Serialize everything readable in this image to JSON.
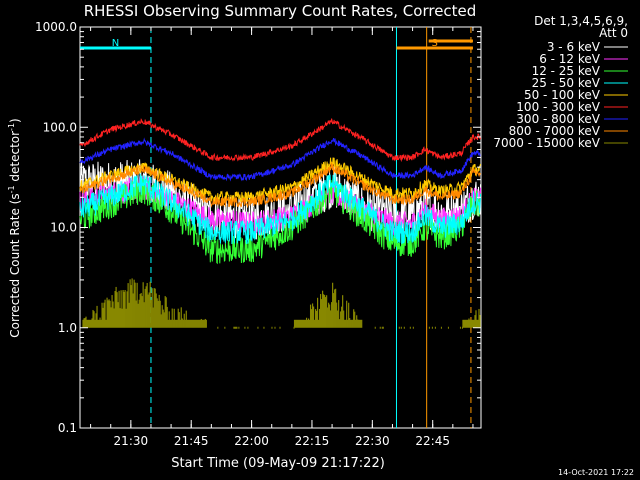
{
  "chart_data": {
    "type": "line",
    "title": "RHESSI Observing Summary Count Rates, Corrected",
    "xlabel": "Start Time (09-May-09 21:17:22)",
    "ylabel_main": "Corrected Count Rate (s",
    "ylabel_sup1": "-1",
    "ylabel_mid": " detector",
    "ylabel_sup2": "-1",
    "ylabel_end": ")",
    "y_scale": "log",
    "ylim": [
      0.1,
      1000.0
    ],
    "xlim": [
      "21:17:22",
      "22:57:00"
    ],
    "y_ticks": [
      "1000.0",
      "100.0",
      "10.0",
      "1.0",
      "0.1"
    ],
    "x_ticks": [
      "21:30",
      "21:45",
      "22:00",
      "22:15",
      "22:30",
      "22:45"
    ],
    "legend_header": [
      "Det 1,3,4,5,6,9,",
      "Att 0"
    ],
    "legend_placement": "right",
    "footer": "14-Oct-2021 17:22",
    "flags": [
      {
        "label": "N",
        "color": "#00ffff",
        "from": "21:17:22",
        "to": "21:35:00"
      },
      {
        "label": "S",
        "color": "#ff9900",
        "from": "22:36:00",
        "to": "22:55:00"
      }
    ],
    "vlines": [
      {
        "time": "21:35:00",
        "color": "#00ffff",
        "style": "dashed"
      },
      {
        "time": "22:36:00",
        "color": "#00ffff",
        "style": "solid"
      },
      {
        "time": "22:43:30",
        "color": "#ff9900",
        "style": "solid"
      },
      {
        "time": "22:54:30",
        "color": "#ff9900",
        "style": "dashed"
      }
    ],
    "x": [
      "21:17:22",
      "21:25",
      "21:33",
      "21:40",
      "21:50",
      "22:00",
      "22:10",
      "22:20",
      "22:28",
      "22:35",
      "22:40",
      "22:43",
      "22:47",
      "22:52",
      "22:55"
    ],
    "series": [
      {
        "name": "3 - 6 keV",
        "color": "#ffffff",
        "values": [
          28,
          28,
          29,
          22,
          13,
          12,
          15,
          26,
          16,
          13,
          13,
          17,
          14,
          15,
          20
        ]
      },
      {
        "name": "6 - 12 keV",
        "color": "#ff33ff",
        "values": [
          18,
          22,
          25,
          19,
          12,
          11,
          13,
          22,
          15,
          11,
          11,
          15,
          12,
          13,
          19
        ]
      },
      {
        "name": "12 - 25 keV",
        "color": "#33ff33",
        "values": [
          12,
          17,
          24,
          15,
          6,
          6,
          10,
          24,
          12,
          7,
          7,
          10,
          8,
          10,
          17
        ]
      },
      {
        "name": "25 - 50 keV",
        "color": "#00ffff",
        "values": [
          15,
          20,
          28,
          18,
          9,
          9,
          12,
          28,
          15,
          9,
          9,
          13,
          10,
          11,
          18
        ]
      },
      {
        "name": "50 - 100 keV",
        "color": "#ffcc00",
        "values": [
          26,
          33,
          40,
          30,
          20,
          20,
          25,
          45,
          30,
          22,
          22,
          27,
          23,
          25,
          38
        ]
      },
      {
        "name": "100 - 300 keV",
        "color": "#ff2222",
        "values": [
          65,
          95,
          115,
          85,
          50,
          50,
          65,
          115,
          75,
          50,
          50,
          60,
          50,
          55,
          80
        ]
      },
      {
        "name": "300 - 800 keV",
        "color": "#2222ff",
        "values": [
          45,
          60,
          72,
          55,
          32,
          32,
          42,
          75,
          50,
          33,
          33,
          40,
          33,
          37,
          55
        ]
      },
      {
        "name": "800 - 7000 keV",
        "color": "#ff8800",
        "values": [
          23,
          31,
          38,
          28,
          18,
          18,
          22,
          40,
          26,
          19,
          19,
          24,
          20,
          22,
          35
        ]
      },
      {
        "name": "7000 - 15000 keV",
        "color": "#888800",
        "values": [
          1,
          2,
          3,
          1.5,
          1,
          1,
          1,
          2.5,
          1,
          1,
          1,
          1,
          1,
          1,
          1.5
        ]
      }
    ]
  }
}
